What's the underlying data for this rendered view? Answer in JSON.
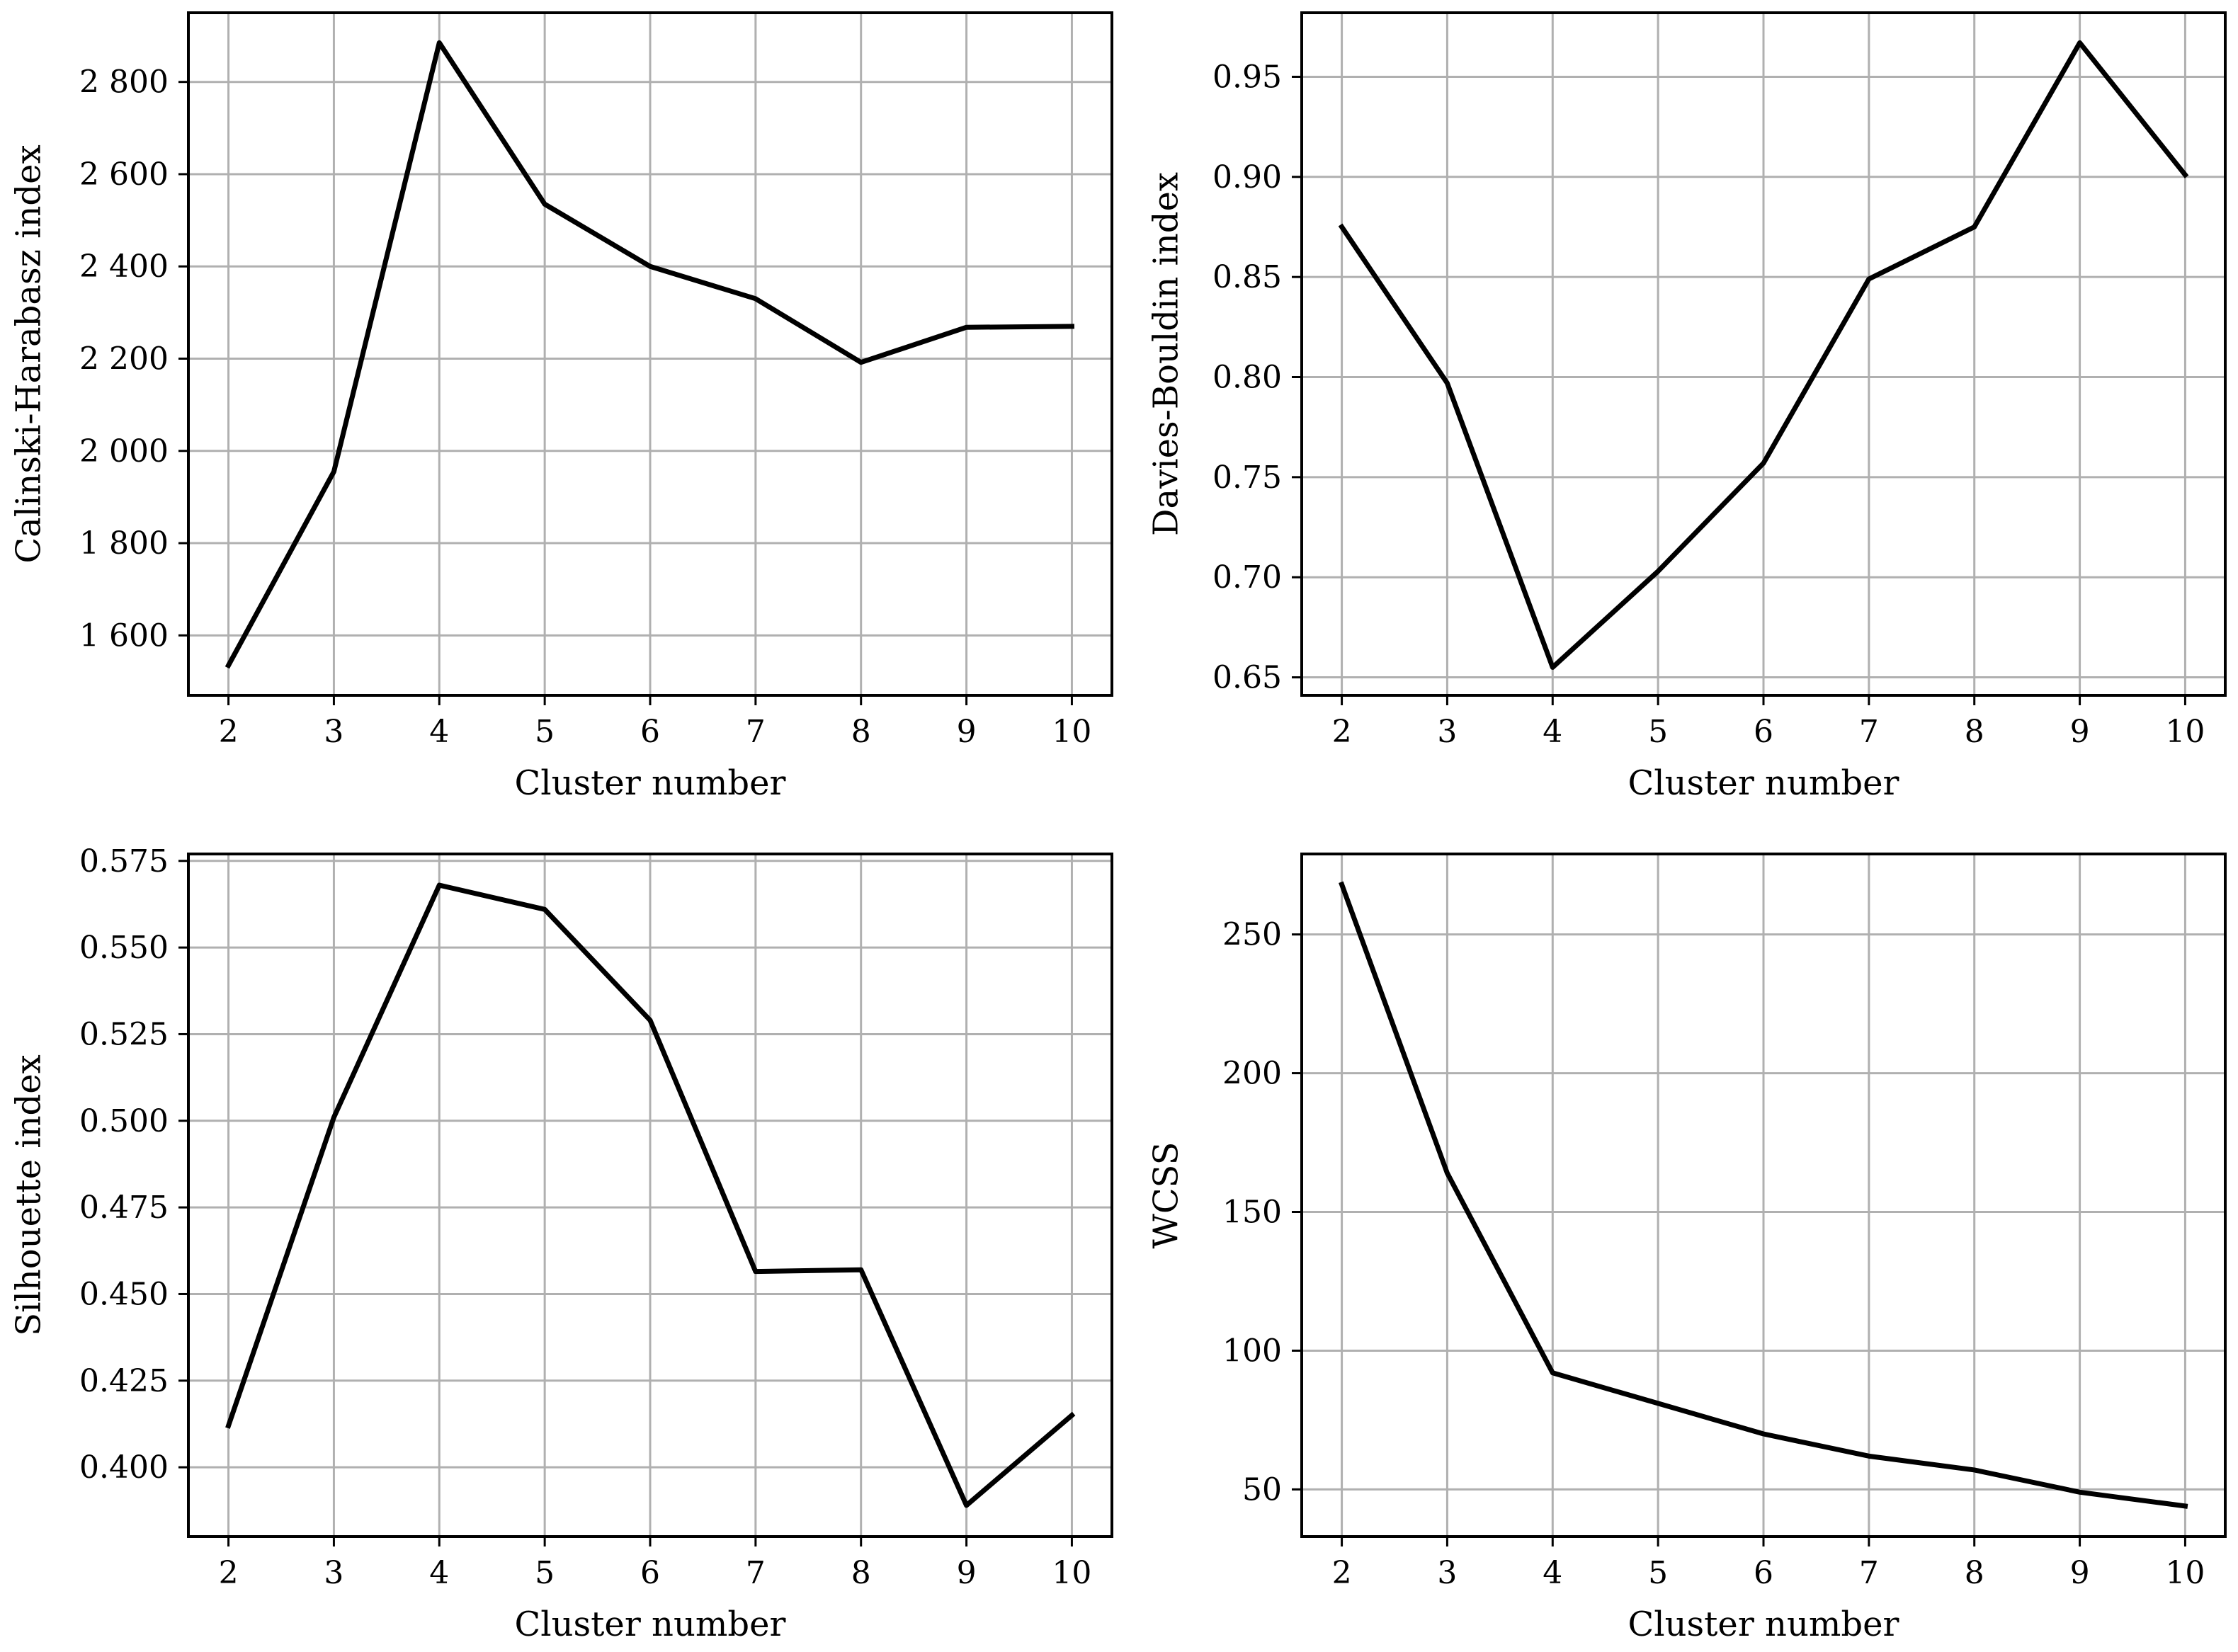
{
  "chart_data": [
    {
      "type": "line",
      "x": [
        2,
        3,
        4,
        5,
        6,
        7,
        8,
        9,
        10
      ],
      "y": [
        1535,
        1955,
        2885,
        2535,
        2400,
        2330,
        2192,
        2268,
        2270
      ],
      "xlabel": "Cluster number",
      "ylabel": "Calinski-Harabasz index",
      "xlim": [
        1.62,
        10.38
      ],
      "ylim": [
        1470,
        2950
      ],
      "xticks": [
        2,
        3,
        4,
        5,
        6,
        7,
        8,
        9,
        10
      ],
      "xtick_labels": [
        "2",
        "3",
        "4",
        "5",
        "6",
        "7",
        "8",
        "9",
        "10"
      ],
      "yticks": [
        1600,
        1800,
        2000,
        2200,
        2400,
        2600,
        2800
      ],
      "ytick_labels": [
        "1 600",
        "1 800",
        "2 000",
        "2 200",
        "2 400",
        "2 600",
        "2 800"
      ],
      "grid": true,
      "color": "#000000"
    },
    {
      "type": "line",
      "x": [
        2,
        3,
        4,
        5,
        6,
        7,
        8,
        9,
        10
      ],
      "y": [
        0.875,
        0.797,
        0.655,
        0.703,
        0.757,
        0.849,
        0.875,
        0.967,
        0.901
      ],
      "xlabel": "Cluster number",
      "ylabel": "Davies-Bouldin index",
      "xlim": [
        1.62,
        10.38
      ],
      "ylim": [
        0.641,
        0.982
      ],
      "xticks": [
        2,
        3,
        4,
        5,
        6,
        7,
        8,
        9,
        10
      ],
      "xtick_labels": [
        "2",
        "3",
        "4",
        "5",
        "6",
        "7",
        "8",
        "9",
        "10"
      ],
      "yticks": [
        0.65,
        0.7,
        0.75,
        0.8,
        0.85,
        0.9,
        0.95
      ],
      "ytick_labels": [
        "0.65",
        "0.70",
        "0.75",
        "0.80",
        "0.85",
        "0.90",
        "0.95"
      ],
      "grid": true,
      "color": "#000000"
    },
    {
      "type": "line",
      "x": [
        2,
        3,
        4,
        5,
        6,
        7,
        8,
        9,
        10
      ],
      "y": [
        0.412,
        0.501,
        0.568,
        0.561,
        0.529,
        0.4565,
        0.457,
        0.389,
        0.415
      ],
      "xlabel": "Cluster number",
      "ylabel": "Silhouette index",
      "xlim": [
        1.62,
        10.38
      ],
      "ylim": [
        0.38,
        0.577
      ],
      "xticks": [
        2,
        3,
        4,
        5,
        6,
        7,
        8,
        9,
        10
      ],
      "xtick_labels": [
        "2",
        "3",
        "4",
        "5",
        "6",
        "7",
        "8",
        "9",
        "10"
      ],
      "yticks": [
        0.4,
        0.425,
        0.45,
        0.475,
        0.5,
        0.525,
        0.55,
        0.575
      ],
      "ytick_labels": [
        "0.400",
        "0.425",
        "0.450",
        "0.475",
        "0.500",
        "0.525",
        "0.550",
        "0.575"
      ],
      "grid": true,
      "color": "#000000"
    },
    {
      "type": "line",
      "x": [
        2,
        3,
        4,
        5,
        6,
        7,
        8,
        9,
        10
      ],
      "y": [
        268,
        164,
        92,
        81,
        70,
        62,
        57,
        49,
        44
      ],
      "xlabel": "Cluster number",
      "ylabel": "WCSS",
      "xlim": [
        1.62,
        10.38
      ],
      "ylim": [
        33,
        279
      ],
      "xticks": [
        2,
        3,
        4,
        5,
        6,
        7,
        8,
        9,
        10
      ],
      "xtick_labels": [
        "2",
        "3",
        "4",
        "5",
        "6",
        "7",
        "8",
        "9",
        "10"
      ],
      "yticks": [
        50,
        100,
        150,
        200,
        250
      ],
      "ytick_labels": [
        "50",
        "100",
        "150",
        "200",
        "250"
      ],
      "grid": true,
      "color": "#000000"
    }
  ]
}
